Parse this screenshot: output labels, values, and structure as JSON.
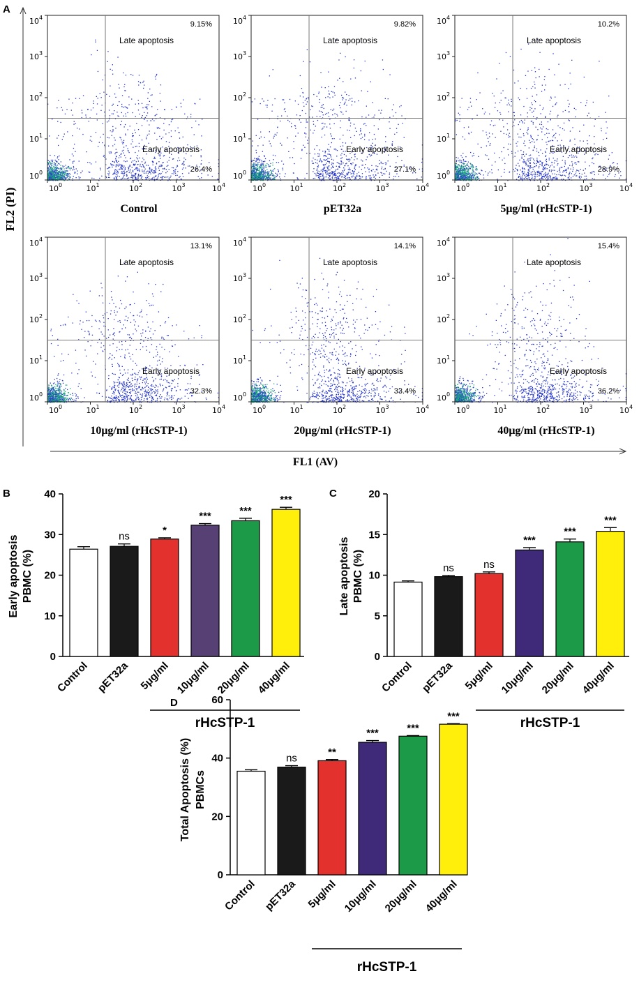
{
  "chart_data": [
    {
      "panel": "A",
      "type": "scatter",
      "xlabel": "FL1 (AV)",
      "ylabel": "FL2 (PI)",
      "axis_scale": "log",
      "xlim": [
        1,
        10000
      ],
      "ylim": [
        1,
        10000
      ],
      "tick_base": "10",
      "tick_exponents": [
        "0",
        "1",
        "2",
        "3",
        "4"
      ],
      "late_label": "Late apoptosis",
      "early_label": "Early apoptosis",
      "plots": [
        {
          "title": "Control",
          "late_pct": "9.15%",
          "early_pct": "26.4%"
        },
        {
          "title": "pET32a",
          "late_pct": "9.82%",
          "early_pct": "27.1%"
        },
        {
          "title": "5μg/ml (rHcSTP-1)",
          "late_pct": "10.2%",
          "early_pct": "28.9%"
        },
        {
          "title": "10μg/ml (rHcSTP-1)",
          "late_pct": "13.1%",
          "early_pct": "32.3%"
        },
        {
          "title": "20μg/ml (rHcSTP-1)",
          "late_pct": "14.1%",
          "early_pct": "33.4%"
        },
        {
          "title": "40μg/ml (rHcSTP-1)",
          "late_pct": "15.4%",
          "early_pct": "36.2%"
        }
      ]
    },
    {
      "panel": "B",
      "type": "bar",
      "ylabel_line1": "Early apoptosis",
      "ylabel_line2": "PBMC (%)",
      "ylim": [
        0,
        40
      ],
      "yticks": [
        0,
        10,
        20,
        30,
        40
      ],
      "categories": [
        "Control",
        "pET32a",
        "5μg/ml",
        "10μg/ml",
        "20μg/ml",
        "40μg/ml"
      ],
      "values": [
        26.4,
        27.1,
        28.9,
        32.3,
        33.4,
        36.2
      ],
      "errors": [
        0.6,
        0.6,
        0.3,
        0.4,
        0.6,
        0.5
      ],
      "significance": [
        "",
        "ns",
        "*",
        "***",
        "***",
        "***"
      ],
      "colors": [
        "#ffffff",
        "#1a1a1a",
        "#e3312d",
        "#574174",
        "#1d9a48",
        "#ffef0a"
      ],
      "group_label": "rHcSTP-1"
    },
    {
      "panel": "C",
      "type": "bar",
      "ylabel_line1": "Late apoptosis",
      "ylabel_line2": "PBMC (%)",
      "ylim": [
        0,
        20
      ],
      "yticks": [
        0,
        5,
        10,
        15,
        20
      ],
      "categories": [
        "Control",
        "pET32a",
        "5μg/ml",
        "10μg/ml",
        "20μg/ml",
        "40μg/ml"
      ],
      "values": [
        9.15,
        9.82,
        10.2,
        13.1,
        14.1,
        15.4
      ],
      "errors": [
        0.15,
        0.15,
        0.2,
        0.3,
        0.35,
        0.45
      ],
      "significance": [
        "",
        "ns",
        "ns",
        "***",
        "***",
        "***"
      ],
      "colors": [
        "#ffffff",
        "#1a1a1a",
        "#e3312d",
        "#3e2a78",
        "#1d9a48",
        "#ffef0a"
      ],
      "group_label": "rHcSTP-1"
    },
    {
      "panel": "D",
      "type": "bar",
      "ylabel_line1": "Total Apoptosis (%)",
      "ylabel_line2": "PBMCs",
      "ylim": [
        0,
        60
      ],
      "yticks": [
        0,
        20,
        40,
        60
      ],
      "categories": [
        "Control",
        "pET32a",
        "5μg/ml",
        "10μg/ml",
        "20μg/ml",
        "40μg/ml"
      ],
      "values": [
        35.5,
        36.9,
        39.1,
        45.4,
        47.5,
        51.6
      ],
      "errors": [
        0.5,
        0.5,
        0.4,
        0.6,
        0.2,
        0.2
      ],
      "significance": [
        "",
        "ns",
        "**",
        "***",
        "***",
        "***"
      ],
      "colors": [
        "#ffffff",
        "#1a1a1a",
        "#e3312d",
        "#3e2a78",
        "#1d9a48",
        "#ffef0a"
      ],
      "group_label": "rHcSTP-1"
    }
  ]
}
